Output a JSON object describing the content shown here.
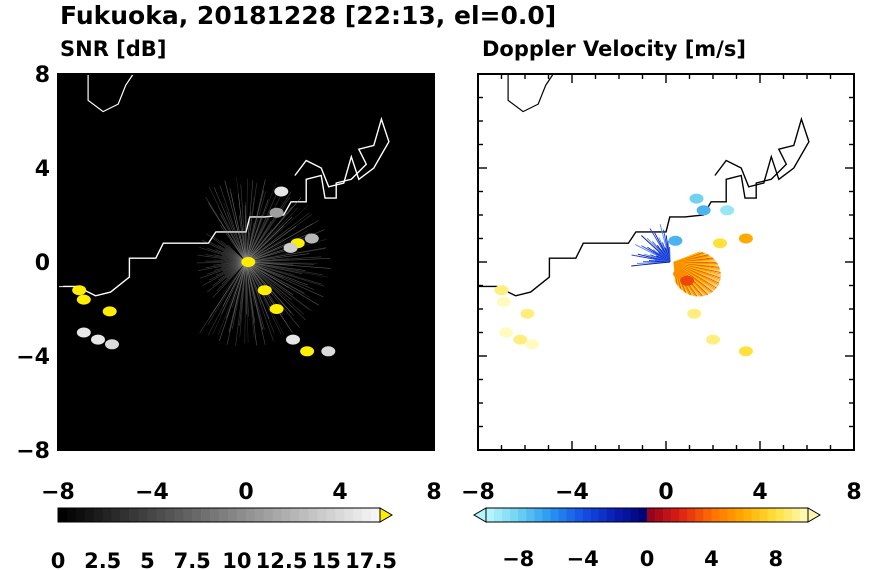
{
  "figure": {
    "title": "Fukuoka, 20181228 [22:13, el=0.0]"
  },
  "chart_data": [
    {
      "type": "heatmap",
      "title": "SNR [dB]",
      "xlim": [
        -8,
        8
      ],
      "ylim": [
        -8,
        8
      ],
      "xticks": [
        "−8",
        "−4",
        "0",
        "4",
        "8"
      ],
      "yticks": [
        "−8",
        "−4",
        "0",
        "4",
        "8"
      ],
      "background": "#000000",
      "coastline_color": "#ffffff",
      "colorbar": {
        "labels": [
          "0",
          "2.5",
          "5",
          "7.5",
          "10",
          "12.5",
          "15",
          "17.5"
        ],
        "range": [
          0,
          18
        ],
        "extend": "max"
      },
      "echoes": [
        {
          "x": -7.1,
          "y": -1.2,
          "snr": 17
        },
        {
          "x": -6.9,
          "y": -1.6,
          "snr": 17
        },
        {
          "x": -5.8,
          "y": -2.1,
          "snr": 17
        },
        {
          "x": -6.9,
          "y": -3.0,
          "snr": 16
        },
        {
          "x": -6.3,
          "y": -3.3,
          "snr": 16
        },
        {
          "x": -5.7,
          "y": -3.5,
          "snr": 15
        },
        {
          "x": 0.8,
          "y": -1.2,
          "snr": 17
        },
        {
          "x": 1.3,
          "y": -2.0,
          "snr": 17
        },
        {
          "x": 2.0,
          "y": -3.3,
          "snr": 16
        },
        {
          "x": 2.6,
          "y": -3.8,
          "snr": 17
        },
        {
          "x": 3.5,
          "y": -3.8,
          "snr": 15
        },
        {
          "x": 1.5,
          "y": 3.0,
          "snr": 16
        },
        {
          "x": 2.2,
          "y": 0.8,
          "snr": 17
        },
        {
          "x": 1.9,
          "y": 0.6,
          "snr": 14
        },
        {
          "x": 2.8,
          "y": 1.0,
          "snr": 12
        },
        {
          "x": 1.3,
          "y": 2.1,
          "snr": 10
        },
        {
          "x": 0.1,
          "y": 0.0,
          "snr": 18
        }
      ]
    },
    {
      "type": "heatmap",
      "title": "Doppler Velocity [m/s]",
      "xlim": [
        -8,
        8
      ],
      "ylim": [
        -8,
        8
      ],
      "xticks": [
        "−8",
        "−4",
        "0",
        "4",
        "8"
      ],
      "yticks": [
        "−8",
        "−4",
        "0",
        "4",
        "8"
      ],
      "background": "#ffffff",
      "coastline_color": "#000000",
      "colorbar": {
        "labels": [
          "−8",
          "−4",
          "0",
          "4",
          "8"
        ],
        "range": [
          -10,
          10
        ],
        "extend": "both"
      },
      "echoes": [
        {
          "x": -7.0,
          "y": -1.2,
          "v": 9
        },
        {
          "x": -6.9,
          "y": -1.7,
          "v": 10
        },
        {
          "x": -5.9,
          "y": -2.2,
          "v": 9
        },
        {
          "x": -6.8,
          "y": -3.0,
          "v": 10
        },
        {
          "x": -6.2,
          "y": -3.3,
          "v": 9
        },
        {
          "x": -5.7,
          "y": -3.5,
          "v": 10
        },
        {
          "x": 1.3,
          "y": 2.7,
          "v": -8
        },
        {
          "x": 1.6,
          "y": 2.2,
          "v": -7
        },
        {
          "x": 2.6,
          "y": 2.2,
          "v": -9
        },
        {
          "x": 3.4,
          "y": 1.0,
          "v": 6
        },
        {
          "x": 2.3,
          "y": 0.8,
          "v": 8
        },
        {
          "x": 0.4,
          "y": 0.9,
          "v": -7
        },
        {
          "x": 0.6,
          "y": -0.5,
          "v": 5
        },
        {
          "x": 0.9,
          "y": -0.8,
          "v": 3
        },
        {
          "x": 1.2,
          "y": -2.2,
          "v": 9
        },
        {
          "x": 2.0,
          "y": -3.3,
          "v": 9
        },
        {
          "x": 3.4,
          "y": -3.8,
          "v": 8
        }
      ]
    }
  ]
}
